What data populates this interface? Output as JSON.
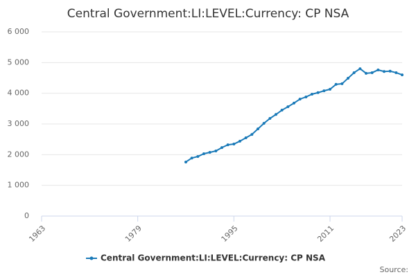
{
  "chart_data": {
    "type": "line",
    "title": "Central Government:LI:LEVEL:Currency: CP NSA",
    "x": [
      1987,
      1988,
      1989,
      1990,
      1991,
      1992,
      1993,
      1994,
      1995,
      1996,
      1997,
      1998,
      1999,
      2000,
      2001,
      2002,
      2003,
      2004,
      2005,
      2006,
      2007,
      2008,
      2009,
      2010,
      2011,
      2012,
      2013,
      2014,
      2015,
      2016,
      2017,
      2018,
      2019,
      2020,
      2021,
      2022,
      2023
    ],
    "series": [
      {
        "name": "Central Government:LI:LEVEL:Currency: CP NSA",
        "color": "#1a7ab8",
        "values": [
          1760,
          1890,
          1940,
          2030,
          2075,
          2120,
          2230,
          2320,
          2345,
          2440,
          2550,
          2660,
          2840,
          3020,
          3180,
          3310,
          3450,
          3560,
          3680,
          3810,
          3880,
          3970,
          4020,
          4080,
          4130,
          4290,
          4310,
          4490,
          4670,
          4800,
          4650,
          4670,
          4760,
          4710,
          4720,
          4670,
          4600
        ]
      }
    ],
    "xlim": [
      1963,
      2023
    ],
    "xticks": [
      1963,
      1979,
      1995,
      2011,
      2023
    ],
    "ylim": [
      0,
      6000
    ],
    "yticks": [
      0,
      {
        "value": 1000,
        "label": "1 000"
      },
      {
        "value": 2000,
        "label": "2 000"
      },
      {
        "value": 3000,
        "label": "3 000"
      },
      {
        "value": 4000,
        "label": "4 000"
      },
      {
        "value": 5000,
        "label": "5 000"
      },
      {
        "value": 6000,
        "label": "6 000"
      }
    ],
    "grid": true,
    "source": "Source:"
  }
}
